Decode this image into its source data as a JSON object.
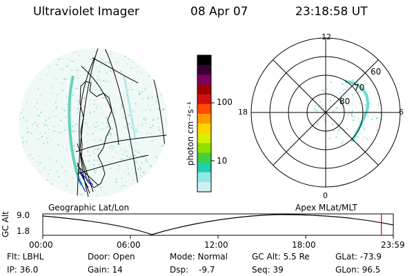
{
  "header": {
    "instrument": "Ultraviolet Imager",
    "date": "08 Apr 07",
    "time": "23:18:58 UT"
  },
  "colorbar": {
    "label": "photon cm⁻²s⁻¹",
    "ticks": [
      "100",
      "10"
    ],
    "colors": [
      "#000000",
      "#3a0033",
      "#7a0060",
      "#a00000",
      "#d01010",
      "#ff4a00",
      "#ff9a00",
      "#ffd400",
      "#d8f000",
      "#90e000",
      "#40d040",
      "#20d0b0",
      "#90e8e8",
      "#d0f0f0"
    ]
  },
  "left_panel": {
    "caption": "Geographic Lat/Lon"
  },
  "right_panel": {
    "caption": "Apex MLat/MLT",
    "mlt_labels": {
      "top": "12",
      "left": "18",
      "right": "6",
      "bottom": "0"
    },
    "lat_labels": [
      "60",
      "70",
      "80"
    ]
  },
  "timeline": {
    "axis_label": "GC Alt",
    "y_ticks": [
      "9.0",
      "1.8"
    ],
    "x_ticks": [
      "00:00",
      "06:00",
      "12:00",
      "18:00",
      "23:59"
    ],
    "current_time_fraction": 0.966
  },
  "info": {
    "flt": "Flt: LBHL",
    "ip": "IP: 36.0",
    "door": "Door: Open",
    "gain": "Gain: 14",
    "mode": "Mode: Normal",
    "dsp_label": "Dsp:",
    "dsp_value": "-9.7",
    "gc_alt": "GC Alt: 5.5 Re",
    "seq": "Seq: 39",
    "glat": "GLat: -73.9",
    "glon": "GLon: 96.5"
  }
}
